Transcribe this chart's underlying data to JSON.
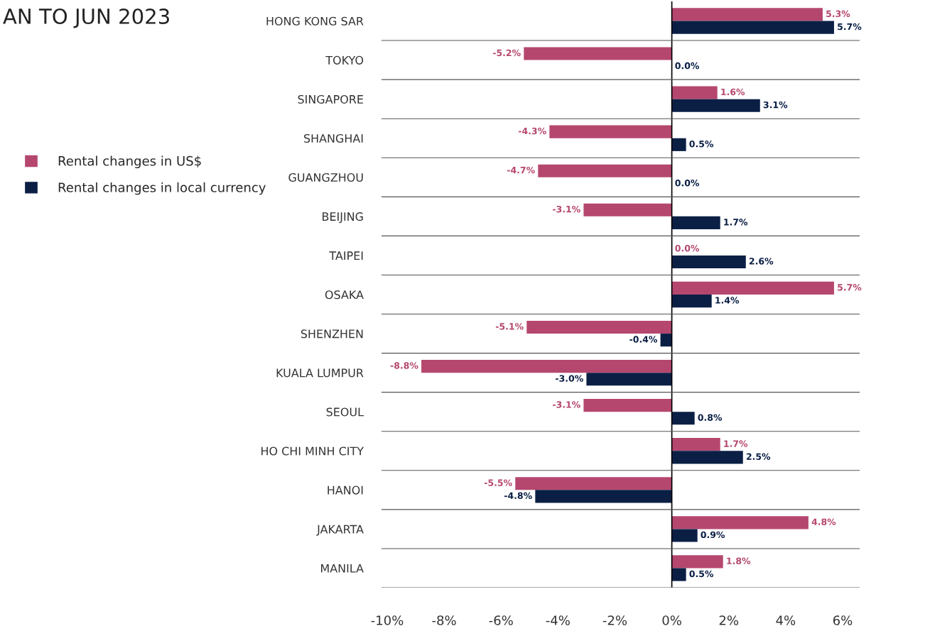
{
  "chart_data": {
    "type": "bar",
    "orientation": "horizontal",
    "subtitle": "AN TO JUN 2023",
    "categories": [
      "HONG KONG SAR",
      "TOKYO",
      "SINGAPORE",
      "SHANGHAI",
      "GUANGZHOU",
      "BEIJING",
      "TAIPEI",
      "OSAKA",
      "SHENZHEN",
      "KUALA LUMPUR",
      "SEOUL",
      "HO CHI MINH CITY",
      "HANOI",
      "JAKARTA",
      "MANILA"
    ],
    "series": [
      {
        "name": "Rental changes in US$",
        "color": "#b5476f",
        "values": [
          5.3,
          -5.2,
          1.6,
          -4.3,
          -4.7,
          -3.1,
          0.0,
          5.7,
          -5.1,
          -8.8,
          -3.1,
          1.7,
          -5.5,
          4.8,
          1.8
        ],
        "value_labels": [
          "5.3%",
          "-5.2%",
          "1.6%",
          "-4.3%",
          "-4.7%",
          "-3.1%",
          "0.0%",
          "5.7%",
          "-5.1%",
          "-8.8%",
          "-3.1%",
          "1.7%",
          "-5.5%",
          "4.8%",
          "1.8%"
        ]
      },
      {
        "name": "Rental changes in local currency",
        "color": "#0b1f45",
        "values": [
          5.7,
          0.0,
          3.1,
          0.5,
          0.0,
          1.7,
          2.6,
          1.4,
          -0.4,
          -3.0,
          0.8,
          2.5,
          -4.8,
          0.9,
          0.5
        ],
        "value_labels": [
          "5.7%",
          "0.0%",
          "3.1%",
          "0.5%",
          "0.0%",
          "1.7%",
          "2.6%",
          "1.4%",
          "-0.4%",
          "-3.0%",
          "0.8%",
          "2.5%",
          "-4.8%",
          "0.9%",
          "0.5%"
        ]
      }
    ],
    "xlim": [
      -10.2,
      6.6
    ],
    "xticks": [
      {
        "value": -10,
        "label": "-10%"
      },
      {
        "value": -8,
        "label": "-8%"
      },
      {
        "value": -6,
        "label": "-6%"
      },
      {
        "value": -4,
        "label": "-4%"
      },
      {
        "value": -2,
        "label": "-2%"
      },
      {
        "value": 0,
        "label": "0%"
      },
      {
        "value": 2,
        "label": "2%"
      },
      {
        "value": 4,
        "label": "4%"
      },
      {
        "value": 6,
        "label": "6%"
      }
    ],
    "grid": false,
    "legend": "left"
  }
}
